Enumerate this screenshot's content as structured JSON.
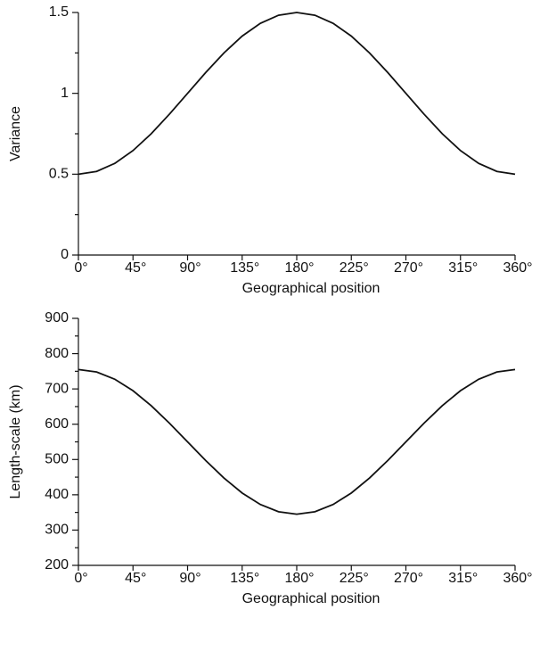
{
  "chart_data": [
    {
      "type": "line",
      "xlabel": "Geographical position",
      "ylabel": "Variance",
      "x": [
        0,
        15,
        30,
        45,
        60,
        75,
        90,
        105,
        120,
        135,
        150,
        165,
        180,
        195,
        210,
        225,
        240,
        255,
        270,
        285,
        300,
        315,
        330,
        345,
        360
      ],
      "values": [
        0.5,
        0.517,
        0.567,
        0.646,
        0.75,
        0.871,
        1.0,
        1.129,
        1.25,
        1.354,
        1.433,
        1.483,
        1.5,
        1.483,
        1.433,
        1.354,
        1.25,
        1.129,
        1.0,
        0.871,
        0.75,
        0.646,
        0.567,
        0.517,
        0.5
      ],
      "color": "#111111",
      "xlim": [
        0,
        360
      ],
      "xticks": [
        {
          "value": 0,
          "label": "0°"
        },
        {
          "value": 45,
          "label": "45°"
        },
        {
          "value": 90,
          "label": "90°"
        },
        {
          "value": 135,
          "label": "135°"
        },
        {
          "value": 180,
          "label": "180°"
        },
        {
          "value": 225,
          "label": "225°"
        },
        {
          "value": 270,
          "label": "270°"
        },
        {
          "value": 315,
          "label": "315°"
        },
        {
          "value": 360,
          "label": "360°"
        }
      ],
      "ylim": [
        0,
        1.5
      ],
      "yticks": [
        0,
        0.5,
        1,
        1.5
      ],
      "yminor_ticks": [
        0.25,
        0.75,
        1.25
      ]
    },
    {
      "type": "line",
      "xlabel": "Geographical position",
      "ylabel": "Length-scale (km)",
      "x": [
        0,
        15,
        30,
        45,
        60,
        75,
        90,
        105,
        120,
        135,
        150,
        165,
        180,
        195,
        210,
        225,
        240,
        255,
        270,
        285,
        300,
        315,
        330,
        345,
        360
      ],
      "values": [
        755,
        748,
        727.5,
        695,
        652.5,
        603.1,
        550,
        496.9,
        447.5,
        405,
        372.5,
        352,
        345,
        352,
        372.5,
        405,
        447.5,
        496.9,
        550,
        603.1,
        652.5,
        695,
        727.5,
        748,
        755
      ],
      "color": "#111111",
      "xlim": [
        0,
        360
      ],
      "xticks": [
        {
          "value": 0,
          "label": "0°"
        },
        {
          "value": 45,
          "label": "45°"
        },
        {
          "value": 90,
          "label": "90°"
        },
        {
          "value": 135,
          "label": "135°"
        },
        {
          "value": 180,
          "label": "180°"
        },
        {
          "value": 225,
          "label": "225°"
        },
        {
          "value": 270,
          "label": "270°"
        },
        {
          "value": 315,
          "label": "315°"
        },
        {
          "value": 360,
          "label": "360°"
        }
      ],
      "ylim": [
        200,
        900
      ],
      "yticks": [
        200,
        300,
        400,
        500,
        600,
        700,
        800,
        900
      ],
      "yminor_ticks": [
        250,
        350,
        450,
        550,
        650,
        750,
        850
      ]
    }
  ]
}
